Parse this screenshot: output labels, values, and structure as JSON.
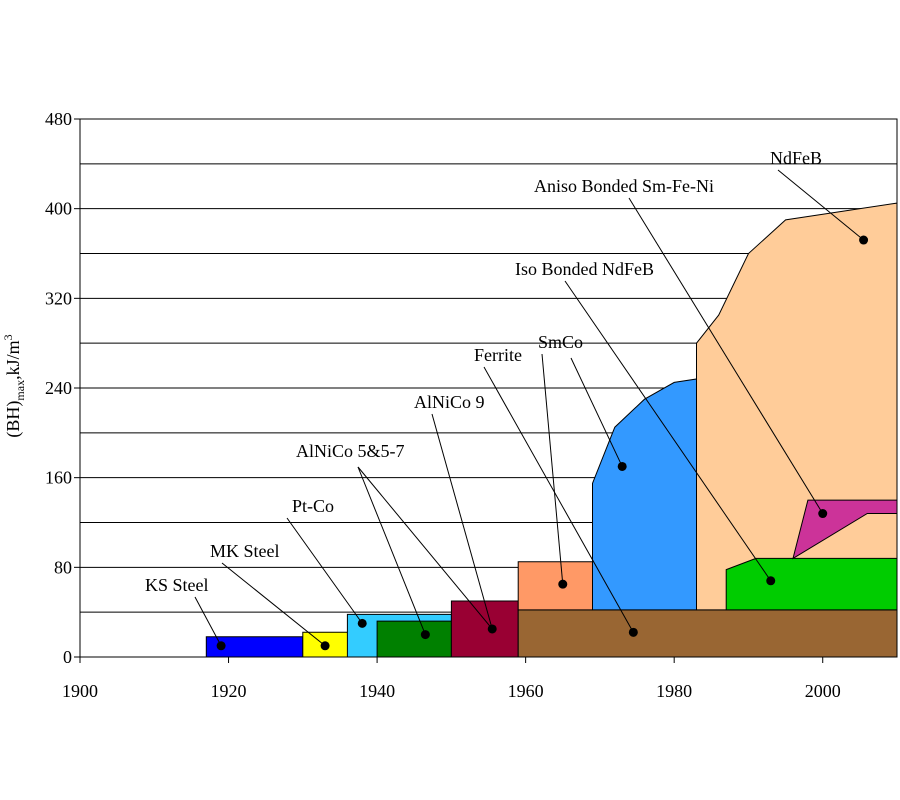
{
  "chart_data": {
    "type": "area",
    "title": "",
    "xlabel": "",
    "ylabel": "(BH)max,kJ/m3",
    "ylabel_parts": {
      "main": "(BH)",
      "sub": "max",
      "unit": ",kJ/m",
      "sup": "3"
    },
    "xlim": [
      1900,
      2010
    ],
    "ylim": [
      0,
      480
    ],
    "grid": true,
    "x_ticks": [
      "1900",
      "1920",
      "1940",
      "1960",
      "1980",
      "2000"
    ],
    "y_ticks": [
      "0",
      "80",
      "160",
      "240",
      "320",
      "400",
      "480"
    ],
    "series": [
      {
        "name": "KS Steel",
        "color": "#0000ff",
        "outline": [
          [
            1917,
            0
          ],
          [
            1917,
            18
          ],
          [
            1930,
            18
          ],
          [
            1930,
            0
          ]
        ],
        "marker": [
          1919,
          10
        ],
        "label_at": [
          1914,
          583
        ]
      },
      {
        "name": "MK Steel",
        "color": "#ffff00",
        "outline": [
          [
            1930,
            0
          ],
          [
            1930,
            22
          ],
          [
            1940,
            22
          ],
          [
            1940,
            0
          ]
        ],
        "marker": [
          1933,
          10
        ],
        "label_at": [
          1928,
          549
        ]
      },
      {
        "name": "Pt-Co",
        "color": "#33ccff",
        "outline": [
          [
            1936,
            0
          ],
          [
            1936,
            38
          ],
          [
            1950,
            38
          ],
          [
            1950,
            0
          ]
        ],
        "marker": [
          1938,
          30
        ],
        "label_at": [
          1939,
          504
        ]
      },
      {
        "name": "AlNiCo 5&5-7",
        "color": "#008000",
        "outline": [
          [
            1940,
            0
          ],
          [
            1940,
            32
          ],
          [
            1950,
            32
          ],
          [
            1950,
            0
          ]
        ],
        "marker": [
          1946.5,
          20
        ],
        "label_at": [
          1945,
          450
        ]
      },
      {
        "name": "AlNiCo 9",
        "color": "#990033",
        "outline": [
          [
            1950,
            0
          ],
          [
            1950,
            50
          ],
          [
            1959,
            50
          ],
          [
            1959,
            0
          ]
        ],
        "marker": [
          1955.5,
          25
        ],
        "label_at": [
          1956,
          400
        ]
      },
      {
        "name": "Ferrite",
        "color": "#996633",
        "outline": [
          [
            1959,
            0
          ],
          [
            1959,
            42
          ],
          [
            2010,
            42
          ],
          [
            2010,
            0
          ]
        ],
        "marker": [
          1974.5,
          22
        ],
        "label_at": [
          1969,
          354
        ]
      },
      {
        "name": "SmCo",
        "color": "#ff9966",
        "outline": [
          [
            1959,
            42
          ],
          [
            1959,
            85
          ],
          [
            1969,
            85
          ],
          [
            1969,
            42
          ]
        ],
        "marker": [
          1965,
          65
        ],
        "label_at": [
          1977,
          341
        ]
      },
      {
        "name": "SmCo",
        "color": "#3399ff",
        "outline": [
          [
            1969,
            42
          ],
          [
            1969,
            155
          ],
          [
            1972,
            205
          ],
          [
            1976,
            230
          ],
          [
            1980,
            245
          ],
          [
            1983,
            248
          ],
          [
            1983,
            42
          ]
        ],
        "marker": [
          1973,
          170
        ],
        "label_at": null
      },
      {
        "name": "NdFeB",
        "color": "#ffcc99",
        "outline": [
          [
            1983,
            42
          ],
          [
            1983,
            280
          ],
          [
            1986,
            305
          ],
          [
            1990,
            360
          ],
          [
            1995,
            390
          ],
          [
            2010,
            405
          ],
          [
            2010,
            42
          ]
        ],
        "marker": [
          2005.5,
          372
        ],
        "label_at": [
          2002,
          157
        ]
      },
      {
        "name": "Iso Bonded NdFeB",
        "color": "#00cc00",
        "outline": [
          [
            1987,
            42
          ],
          [
            1987,
            78
          ],
          [
            1991,
            88
          ],
          [
            2010,
            88
          ],
          [
            2010,
            42
          ]
        ],
        "marker": [
          1993,
          68
        ],
        "label_at": [
          1979,
          267
        ]
      },
      {
        "name": "Aniso Bonded Sm-Fe-Ni",
        "color": "#cc3399",
        "outline": [
          [
            1996,
            88
          ],
          [
            1998,
            140
          ],
          [
            2010,
            140
          ],
          [
            2010,
            128
          ],
          [
            2006,
            128
          ]
        ],
        "marker": [
          2000,
          128
        ],
        "label_at": [
          1982,
          185
        ]
      }
    ]
  }
}
